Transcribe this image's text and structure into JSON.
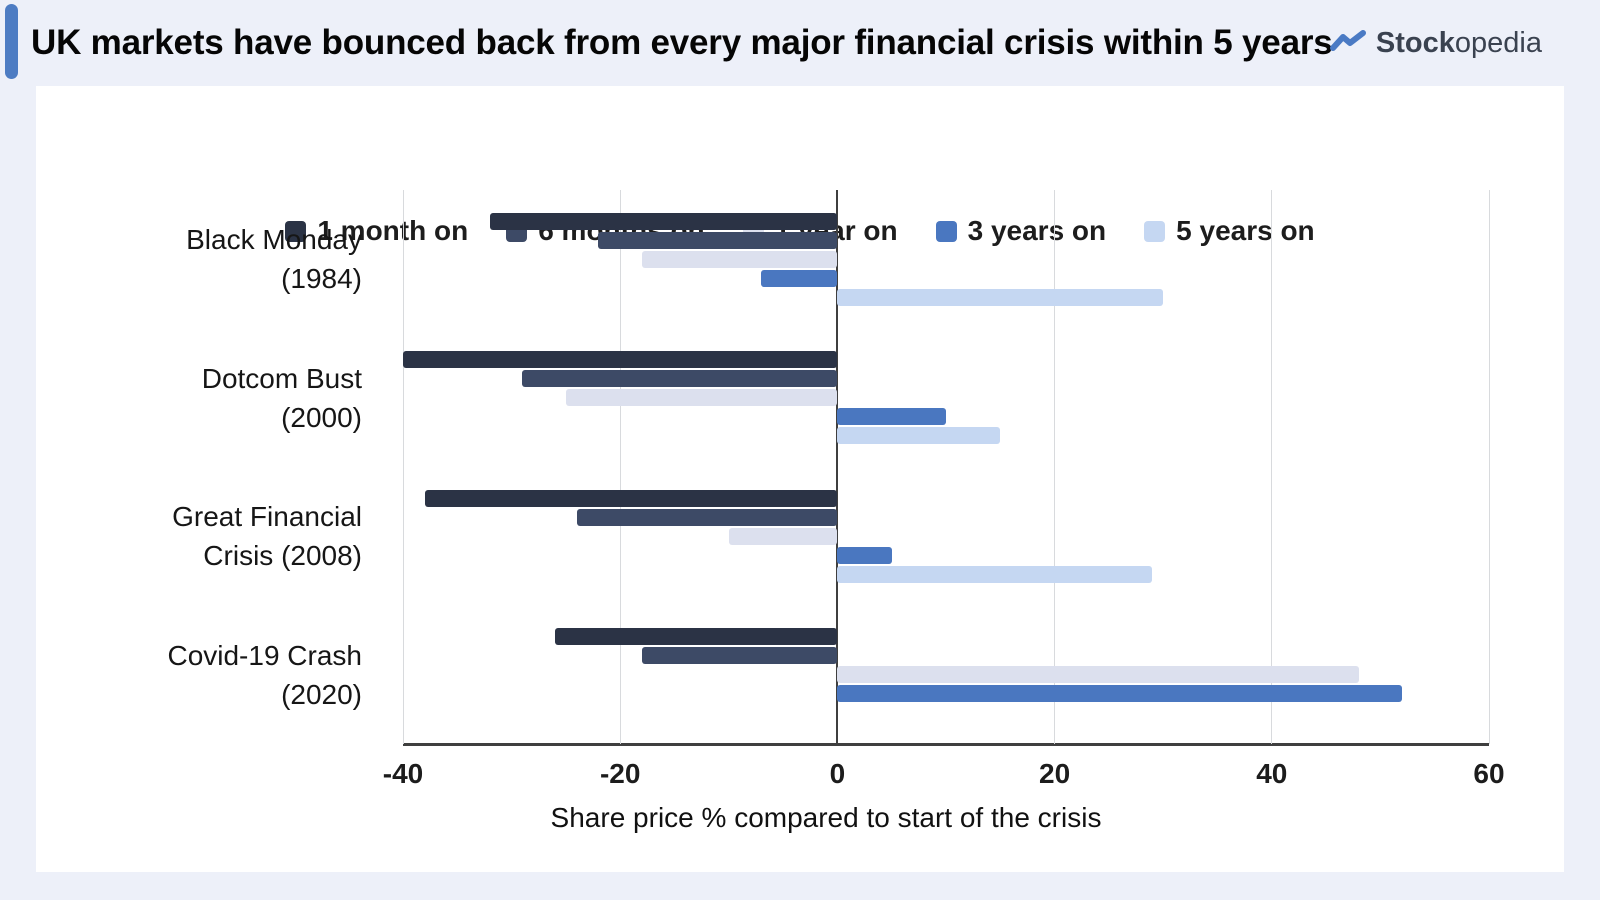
{
  "page": {
    "background_color": "#edf0f9",
    "card_color": "#ffffff",
    "accent_color": "#4d7cc3"
  },
  "header": {
    "title": "UK markets have bounced back from every major financial crisis within 5 years",
    "logo": {
      "icon": "trend-up-icon",
      "icon_color": "#4a7ac4",
      "brand_bold": "Stock",
      "brand_light": "opedia"
    }
  },
  "chart_data": {
    "type": "bar",
    "orientation": "horizontal",
    "title": "UK markets have bounced back from every major financial crisis within 5 years",
    "xlabel": "Share price % compared to start of the crisis",
    "xlim": [
      -40,
      60
    ],
    "x_ticks": [
      -40,
      -20,
      0,
      20,
      40,
      60
    ],
    "grid": true,
    "legend_position": "top",
    "categories": [
      "Black Monday (1984)",
      "Dotcom Bust (2000)",
      "Great Financial Crisis (2008)",
      "Covid-19 Crash (2020)"
    ],
    "category_lines": [
      [
        "Black Monday",
        "(1984)"
      ],
      [
        "Dotcom Bust",
        "(2000)"
      ],
      [
        "Great Financial",
        "Crisis (2008)"
      ],
      [
        "Covid-19 Crash",
        "(2020)"
      ]
    ],
    "series": [
      {
        "name": "1 month on",
        "color": "#2b3345",
        "values": [
          -32,
          -40,
          -38,
          -26
        ]
      },
      {
        "name": "6 months on",
        "color": "#3d4a66",
        "values": [
          -22,
          -29,
          -24,
          -18
        ]
      },
      {
        "name": "1 year on",
        "color": "#dce0ee",
        "values": [
          -18,
          -25,
          -10,
          48
        ]
      },
      {
        "name": "3 years on",
        "color": "#4a77c0",
        "values": [
          -7,
          10,
          5,
          52
        ]
      },
      {
        "name": "5 years on",
        "color": "#c5d7f2",
        "values": [
          30,
          15,
          29,
          null
        ]
      }
    ],
    "axis_colors": {
      "gridline": "#d8dadd",
      "zero_line": "#3f3f3f",
      "axis_line": "#3f3f3f"
    }
  }
}
